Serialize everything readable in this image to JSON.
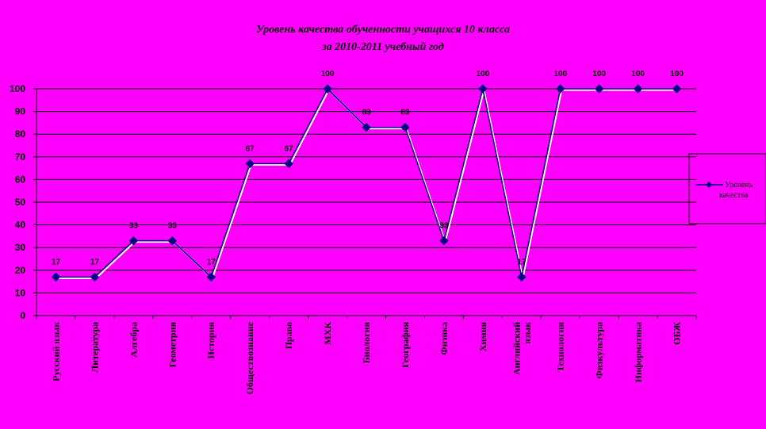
{
  "chart_data": {
    "type": "line",
    "title": [
      "Уровень качества обученности учащихся 10 класса",
      "за 2010-2011 учебный год"
    ],
    "categories": [
      [
        "Русский язык"
      ],
      [
        "Литература"
      ],
      [
        "Алгебра"
      ],
      [
        "Геометрия"
      ],
      [
        "История"
      ],
      [
        "Обществознание"
      ],
      [
        "Право"
      ],
      [
        "МХК"
      ],
      [
        "Биология"
      ],
      [
        "География"
      ],
      [
        "Физика"
      ],
      [
        "Химия"
      ],
      [
        "Английский",
        "язык"
      ],
      [
        "Технология"
      ],
      [
        "Физкультура"
      ],
      [
        "Информатика"
      ],
      [
        "ОБЖ"
      ]
    ],
    "series": [
      {
        "name": [
          "Уровень",
          "качества"
        ],
        "values": [
          17,
          17,
          33,
          33,
          17,
          67,
          67,
          100,
          83,
          83,
          33,
          100,
          17,
          100,
          100,
          100,
          100
        ],
        "color": "#000080"
      }
    ],
    "ylim": [
      0,
      100
    ],
    "yticks": [
      0,
      10,
      20,
      30,
      40,
      50,
      60,
      70,
      80,
      90,
      100
    ],
    "grid": true,
    "data_labels": true,
    "legend": "right",
    "colors": {
      "background": "#FF00FF",
      "gridline": "#000000",
      "line": "#000080",
      "shadow": "#FFFFFF"
    }
  }
}
